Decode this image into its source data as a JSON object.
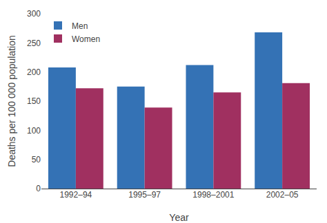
{
  "chart_data": {
    "type": "bar",
    "xlabel": "Year",
    "ylabel": "Deaths per 100 000 population",
    "categories": [
      "1992–94",
      "1995–97",
      "1998–2001",
      "2002–05"
    ],
    "series": [
      {
        "name": "Men",
        "color": "#3472B5",
        "values": [
          208,
          175,
          212,
          268
        ]
      },
      {
        "name": "Women",
        "color": "#A03060",
        "values": [
          172,
          139,
          165,
          181
        ]
      }
    ],
    "ylim": [
      0,
      300
    ],
    "yticks": [
      0,
      50,
      100,
      150,
      200,
      250,
      300
    ],
    "grid": false,
    "legend": "upper left"
  }
}
